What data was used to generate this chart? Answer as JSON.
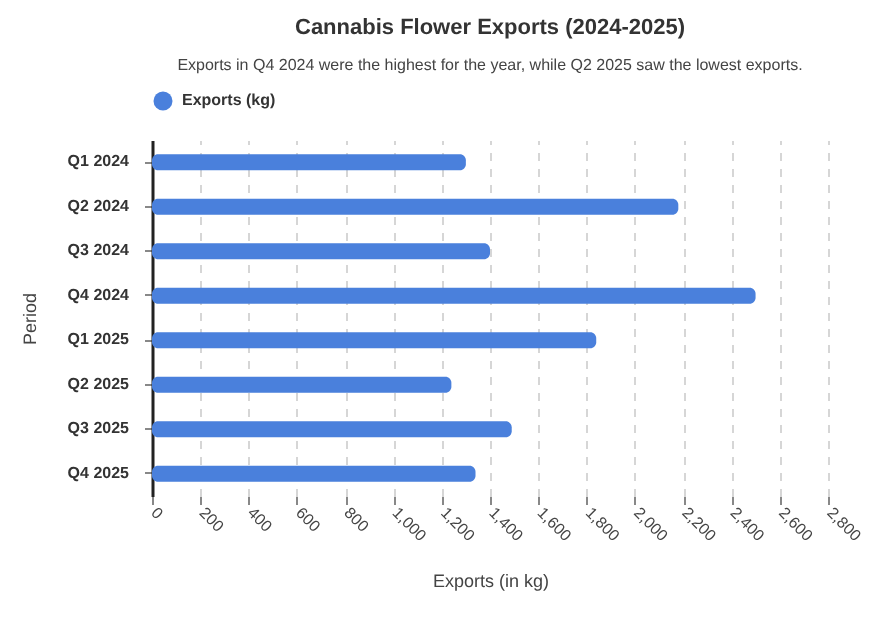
{
  "chart_data": {
    "type": "bar",
    "orientation": "horizontal",
    "title": "Cannabis Flower Exports (2024-2025)",
    "subtitle": "Exports in Q4 2024 were the highest for the year, while Q2 2025 saw the lowest exports.",
    "xlabel": "Exports (in kg)",
    "ylabel": "Period",
    "categories": [
      "Q1 2024",
      "Q2 2024",
      "Q3 2024",
      "Q4 2024",
      "Q1 2025",
      "Q2 2025",
      "Q3 2025",
      "Q4 2025"
    ],
    "series": [
      {
        "name": "Exports (kg)",
        "color": "#4a80dc",
        "values": [
          1300,
          2180,
          1400,
          2500,
          1840,
          1240,
          1490,
          1340
        ]
      }
    ],
    "xlim": [
      0,
      2800
    ],
    "xticks": [
      0,
      {
        "value": 200,
        "label": "200"
      },
      {
        "value": 400,
        "label": "400"
      },
      {
        "value": 600,
        "label": "600"
      },
      {
        "value": 800,
        "label": "800"
      },
      {
        "value": 1000,
        "label": "1,000"
      },
      {
        "value": 1200,
        "label": "1,200"
      },
      {
        "value": 1400,
        "label": "1,400"
      },
      {
        "value": 1600,
        "label": "1,600"
      },
      {
        "value": 1800,
        "label": "1,800"
      },
      {
        "value": 2000,
        "label": "2,000"
      },
      {
        "value": 2200,
        "label": "2,200"
      },
      {
        "value": 2400,
        "label": "2,400"
      },
      {
        "value": 2600,
        "label": "2,600"
      },
      {
        "value": 2800,
        "label": "2,800"
      }
    ],
    "grid": "x",
    "legend": "top"
  }
}
